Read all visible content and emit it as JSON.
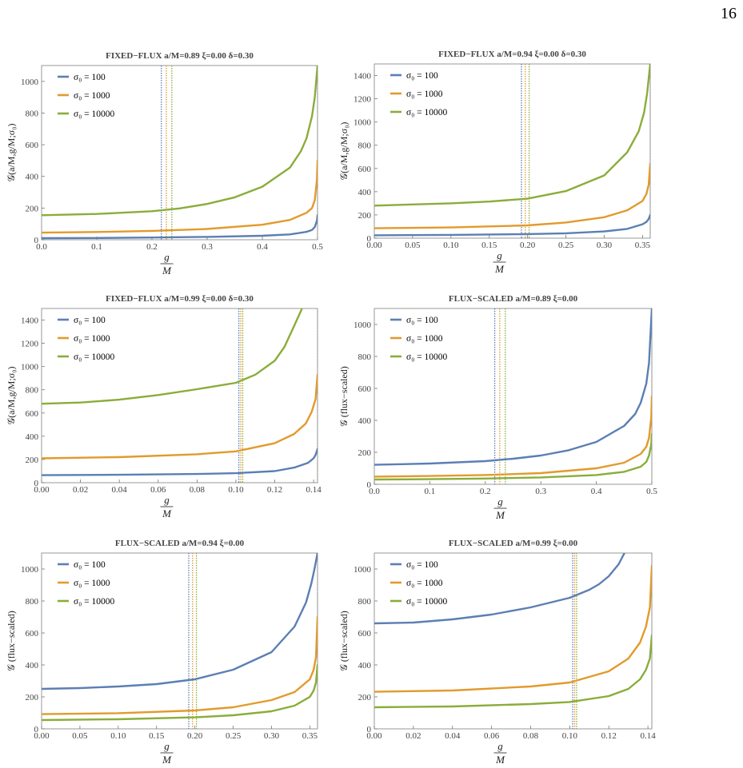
{
  "page_number": "16",
  "series_colors": [
    "#5b7fb4",
    "#e29a2c",
    "#8aad3a"
  ],
  "chart_data": [
    {
      "type": "line",
      "title": "FIXED−FLUX   a/M=0.89   ξ=0.00   δ=0.30",
      "xlabel_num": "g",
      "xlabel_den": "M",
      "ylabel": "𝒢(a/M,g/M;σ₀)",
      "xlim": [
        0,
        0.5
      ],
      "ylim": [
        0,
        1100
      ],
      "xticks": [
        0,
        0.1,
        0.2,
        0.3,
        0.4,
        0.5
      ],
      "xtick_labels": [
        "0.0",
        "0.1",
        "0.2",
        "0.3",
        "0.4",
        "0.5"
      ],
      "yticks": [
        0,
        200,
        400,
        600,
        800,
        1000
      ],
      "ytick_labels": [
        "0",
        "200",
        "400",
        "600",
        "800",
        "1000"
      ],
      "x_end": 0.5,
      "vlines": [
        0.217,
        0.226,
        0.236
      ],
      "legend_position": "top-left",
      "series": [
        {
          "name": "σ₀ = 100",
          "x": [
            0,
            0.1,
            0.2,
            0.3,
            0.4,
            0.45,
            0.48,
            0.49,
            0.495,
            0.499,
            0.5
          ],
          "y": [
            10,
            11,
            14,
            18,
            25,
            34,
            50,
            62,
            80,
            120,
            155
          ]
        },
        {
          "name": "σ₀ = 1000",
          "x": [
            0,
            0.1,
            0.2,
            0.3,
            0.4,
            0.45,
            0.48,
            0.49,
            0.495,
            0.499,
            0.5
          ],
          "y": [
            45,
            49,
            56,
            68,
            95,
            125,
            170,
            200,
            250,
            380,
            500
          ]
        },
        {
          "name": "σ₀ = 10000",
          "x": [
            0,
            0.1,
            0.2,
            0.25,
            0.3,
            0.35,
            0.4,
            0.45,
            0.47,
            0.48,
            0.49,
            0.495,
            0.5
          ],
          "y": [
            155,
            163,
            180,
            198,
            226,
            268,
            335,
            455,
            560,
            640,
            780,
            900,
            1100
          ]
        }
      ]
    },
    {
      "type": "line",
      "title": "FIXED−FLUX   a/M=0.94   ξ=0.00   δ=0.30",
      "xlabel_num": "g",
      "xlabel_den": "M",
      "ylabel": "𝒢(a/M,g/M;σ₀)",
      "xlim": [
        0,
        0.36
      ],
      "ylim": [
        0,
        1500
      ],
      "xticks": [
        0,
        0.05,
        0.1,
        0.15,
        0.2,
        0.25,
        0.3,
        0.35
      ],
      "xtick_labels": [
        "0.00",
        "0.05",
        "0.10",
        "0.15",
        "0.20",
        "0.25",
        "0.30",
        "0.35"
      ],
      "yticks": [
        0,
        200,
        400,
        600,
        800,
        1000,
        1200,
        1400
      ],
      "ytick_labels": [
        "0",
        "200",
        "400",
        "600",
        "800",
        "1000",
        "1200",
        "1400"
      ],
      "x_end": 0.36,
      "vlines": [
        0.192,
        0.197,
        0.202
      ],
      "legend_position": "top-left",
      "series": [
        {
          "name": "σ₀ = 100",
          "x": [
            0,
            0.1,
            0.2,
            0.25,
            0.3,
            0.33,
            0.35,
            0.355,
            0.358,
            0.36
          ],
          "y": [
            25,
            28,
            35,
            42,
            58,
            80,
            120,
            140,
            165,
            200
          ]
        },
        {
          "name": "σ₀ = 1000",
          "x": [
            0,
            0.1,
            0.2,
            0.25,
            0.3,
            0.33,
            0.35,
            0.355,
            0.358,
            0.36
          ],
          "y": [
            85,
            92,
            110,
            135,
            180,
            240,
            320,
            380,
            460,
            640
          ]
        },
        {
          "name": "σ₀ = 10000",
          "x": [
            0,
            0.1,
            0.15,
            0.2,
            0.25,
            0.3,
            0.33,
            0.345,
            0.352,
            0.356,
            0.36
          ],
          "y": [
            280,
            300,
            315,
            340,
            405,
            540,
            740,
            920,
            1080,
            1250,
            1500
          ]
        }
      ]
    },
    {
      "type": "line",
      "title": "FIXED−FLUX   a/M=0.99   ξ=0.00   δ=0.30",
      "xlabel_num": "g",
      "xlabel_den": "M",
      "ylabel": "𝒢(a/M,g/M;σ₀)",
      "xlim": [
        0,
        0.142
      ],
      "ylim": [
        0,
        1500
      ],
      "xticks": [
        0,
        0.02,
        0.04,
        0.06,
        0.08,
        0.1,
        0.12,
        0.14
      ],
      "xtick_labels": [
        "0.00",
        "0.02",
        "0.04",
        "0.06",
        "0.08",
        "0.10",
        "0.12",
        "0.14"
      ],
      "yticks": [
        0,
        200,
        400,
        600,
        800,
        1000,
        1200,
        1400
      ],
      "ytick_labels": [
        "0",
        "200",
        "400",
        "600",
        "800",
        "1000",
        "1200",
        "1400"
      ],
      "x_end": 0.142,
      "vlines": [
        0.1015,
        0.1025,
        0.1035
      ],
      "legend_position": "top-left",
      "series": [
        {
          "name": "σ₀ = 100",
          "x": [
            0,
            0.04,
            0.08,
            0.1,
            0.12,
            0.13,
            0.137,
            0.14,
            0.141,
            0.142
          ],
          "y": [
            65,
            68,
            75,
            82,
            100,
            130,
            170,
            210,
            240,
            290
          ]
        },
        {
          "name": "σ₀ = 1000",
          "x": [
            0,
            0.04,
            0.08,
            0.1,
            0.12,
            0.13,
            0.136,
            0.139,
            0.141,
            0.142
          ],
          "y": [
            210,
            220,
            245,
            270,
            340,
            420,
            510,
            610,
            720,
            930
          ]
        },
        {
          "name": "σ₀ = 10000",
          "x": [
            0,
            0.02,
            0.04,
            0.06,
            0.08,
            0.1,
            0.11,
            0.12,
            0.125,
            0.13,
            0.134
          ],
          "y": [
            680,
            690,
            715,
            755,
            805,
            860,
            930,
            1050,
            1170,
            1350,
            1500
          ]
        }
      ]
    },
    {
      "type": "line",
      "title": "FLUX−SCALED   a/M=0.89   ξ=0.00",
      "xlabel_num": "g",
      "xlabel_den": "M",
      "ylabel": "𝒢 (flux−scaled)",
      "xlim": [
        0,
        0.5
      ],
      "ylim": [
        0,
        1100
      ],
      "xticks": [
        0,
        0.1,
        0.2,
        0.3,
        0.4,
        0.5
      ],
      "xtick_labels": [
        "0.0",
        "0.1",
        "0.2",
        "0.3",
        "0.4",
        "0.5"
      ],
      "yticks": [
        0,
        200,
        400,
        600,
        800,
        1000
      ],
      "ytick_labels": [
        "0",
        "200",
        "400",
        "600",
        "800",
        "1000"
      ],
      "x_end": 0.5,
      "vlines": [
        0.217,
        0.226,
        0.236
      ],
      "legend_position": "top-left",
      "series": [
        {
          "name": "σ₀ = 100",
          "x": [
            0,
            0.1,
            0.2,
            0.25,
            0.3,
            0.35,
            0.4,
            0.45,
            0.47,
            0.48,
            0.49,
            0.495,
            0.5
          ],
          "y": [
            122,
            130,
            145,
            160,
            180,
            213,
            265,
            365,
            440,
            510,
            630,
            760,
            1100
          ]
        },
        {
          "name": "σ₀ = 1000",
          "x": [
            0,
            0.1,
            0.2,
            0.3,
            0.4,
            0.45,
            0.48,
            0.49,
            0.495,
            0.499,
            0.5
          ],
          "y": [
            48,
            52,
            58,
            70,
            100,
            135,
            190,
            235,
            290,
            420,
            550
          ]
        },
        {
          "name": "σ₀ = 10000",
          "x": [
            0,
            0.1,
            0.2,
            0.3,
            0.4,
            0.45,
            0.48,
            0.49,
            0.495,
            0.499,
            0.5
          ],
          "y": [
            30,
            32,
            36,
            43,
            58,
            78,
            110,
            140,
            180,
            250,
            315
          ]
        }
      ]
    },
    {
      "type": "line",
      "title": "FLUX−SCALED   a/M=0.94   ξ=0.00",
      "xlabel_num": "g",
      "xlabel_den": "M",
      "ylabel": "𝒢 (flux−scaled)",
      "xlim": [
        0,
        0.36
      ],
      "ylim": [
        0,
        1100
      ],
      "xticks": [
        0,
        0.05,
        0.1,
        0.15,
        0.2,
        0.25,
        0.3,
        0.35
      ],
      "xtick_labels": [
        "0.00",
        "0.05",
        "0.10",
        "0.15",
        "0.20",
        "0.25",
        "0.30",
        "0.35"
      ],
      "yticks": [
        0,
        200,
        400,
        600,
        800,
        1000
      ],
      "ytick_labels": [
        "0",
        "200",
        "400",
        "600",
        "800",
        "1000"
      ],
      "x_end": 0.36,
      "vlines": [
        0.192,
        0.197,
        0.202
      ],
      "legend_position": "top-left",
      "series": [
        {
          "name": "σ₀ = 100",
          "x": [
            0,
            0.05,
            0.1,
            0.15,
            0.2,
            0.25,
            0.3,
            0.33,
            0.345,
            0.352,
            0.356,
            0.36
          ],
          "y": [
            250,
            255,
            265,
            280,
            310,
            370,
            480,
            640,
            790,
            910,
            1000,
            1100
          ]
        },
        {
          "name": "σ₀ = 1000",
          "x": [
            0,
            0.1,
            0.2,
            0.25,
            0.3,
            0.33,
            0.35,
            0.355,
            0.358,
            0.36
          ],
          "y": [
            92,
            98,
            115,
            135,
            180,
            230,
            310,
            370,
            450,
            700
          ]
        },
        {
          "name": "σ₀ = 10000",
          "x": [
            0,
            0.1,
            0.2,
            0.25,
            0.3,
            0.33,
            0.35,
            0.355,
            0.358,
            0.36
          ],
          "y": [
            55,
            60,
            72,
            85,
            110,
            145,
            200,
            240,
            290,
            400
          ]
        }
      ]
    },
    {
      "type": "line",
      "title": "FLUX−SCALED   a/M=0.99   ξ=0.00",
      "xlabel_num": "g",
      "xlabel_den": "M",
      "ylabel": "𝒢 (flux−scaled)",
      "xlim": [
        0,
        0.142
      ],
      "ylim": [
        0,
        1100
      ],
      "xticks": [
        0,
        0.02,
        0.04,
        0.06,
        0.08,
        0.1,
        0.12,
        0.14
      ],
      "xtick_labels": [
        "0.00",
        "0.02",
        "0.04",
        "0.06",
        "0.08",
        "0.10",
        "0.12",
        "0.14"
      ],
      "yticks": [
        0,
        200,
        400,
        600,
        800,
        1000
      ],
      "ytick_labels": [
        "0",
        "200",
        "400",
        "600",
        "800",
        "1000"
      ],
      "x_end": 0.142,
      "vlines": [
        0.1015,
        0.1025,
        0.1035
      ],
      "legend_position": "top-left",
      "series": [
        {
          "name": "σ₀ = 100",
          "x": [
            0,
            0.02,
            0.04,
            0.06,
            0.08,
            0.1,
            0.11,
            0.115,
            0.12,
            0.125,
            0.128
          ],
          "y": [
            660,
            665,
            685,
            715,
            760,
            820,
            870,
            905,
            955,
            1030,
            1100
          ]
        },
        {
          "name": "σ₀ = 1000",
          "x": [
            0,
            0.04,
            0.08,
            0.1,
            0.12,
            0.13,
            0.136,
            0.139,
            0.141,
            0.142
          ],
          "y": [
            232,
            240,
            265,
            290,
            360,
            440,
            540,
            640,
            760,
            1020
          ]
        },
        {
          "name": "σ₀ = 10000",
          "x": [
            0,
            0.04,
            0.08,
            0.1,
            0.12,
            0.13,
            0.136,
            0.139,
            0.141,
            0.142
          ],
          "y": [
            135,
            140,
            155,
            168,
            205,
            250,
            310,
            370,
            440,
            585
          ]
        }
      ]
    }
  ]
}
